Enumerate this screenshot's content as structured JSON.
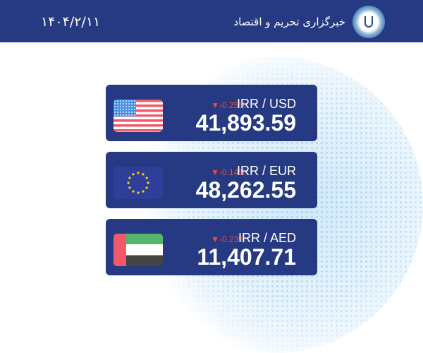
{
  "header": {
    "date": "۱۴۰۴/۲/۱۱",
    "title": "خبرگزاری تحریم و اقتصاد",
    "logo": "iran-emblem-logo"
  },
  "colors": {
    "header": "#253a82",
    "card": "#253a82",
    "down": "#ee4a3a"
  },
  "rates": [
    {
      "pair": "IRR / USD",
      "change": "▼-0.25%",
      "value": "41,893.59",
      "flag": "us-flag"
    },
    {
      "pair": "IRR / EUR",
      "change": "▼-0.14%",
      "value": "48,262.55",
      "flag": "eu-flag"
    },
    {
      "pair": "IRR / AED",
      "change": "▼-0.23%",
      "value": "11,407.71",
      "flag": "uae-flag"
    }
  ]
}
